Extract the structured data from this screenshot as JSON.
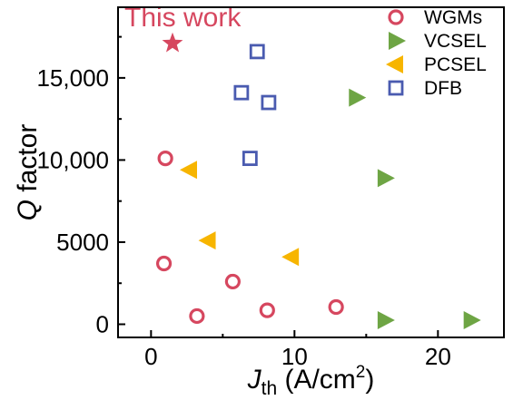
{
  "chart_data": {
    "type": "scatter",
    "title": "",
    "xlabel": {
      "main": "J",
      "sub": "th",
      "unit_pre": " (A/cm",
      "sup": "2",
      "unit_post": ")"
    },
    "ylabel": {
      "italic": "Q",
      "rest": " factor"
    },
    "xlim": [
      -2.3,
      24.6
    ],
    "ylim": [
      -800,
      19300
    ],
    "x_ticks": [
      0,
      10,
      20
    ],
    "x_tick_labels": [
      "0",
      "10",
      "20"
    ],
    "y_ticks": [
      0,
      5000,
      10000,
      15000
    ],
    "y_tick_labels": [
      "0",
      "5000",
      "10,000",
      "15,000"
    ],
    "grid": false,
    "legend_position": "top-right",
    "annotation": {
      "text": "This work",
      "x": 1.5,
      "y": 17100,
      "color": "#d6475f",
      "marker": "star"
    },
    "series": [
      {
        "name": "WGMs",
        "marker": "circle",
        "color": "#d6475f",
        "points": [
          [
            1.0,
            10100
          ],
          [
            0.9,
            3700
          ],
          [
            3.2,
            500
          ],
          [
            5.7,
            2600
          ],
          [
            8.1,
            850
          ],
          [
            12.9,
            1050
          ]
        ]
      },
      {
        "name": "VCSEL",
        "marker": "triangle-right",
        "color": "#6ea544",
        "points": [
          [
            14.3,
            13800
          ],
          [
            16.3,
            8900
          ],
          [
            16.3,
            250
          ],
          [
            22.3,
            250
          ]
        ]
      },
      {
        "name": "PCSEL",
        "marker": "triangle-left",
        "color": "#f7b500",
        "points": [
          [
            2.7,
            9400
          ],
          [
            4.0,
            5100
          ],
          [
            9.8,
            4100
          ]
        ]
      },
      {
        "name": "DFB",
        "marker": "square",
        "color": "#4a5bb0",
        "points": [
          [
            7.4,
            16600
          ],
          [
            6.3,
            14100
          ],
          [
            8.2,
            13500
          ],
          [
            6.9,
            10100
          ]
        ]
      }
    ]
  }
}
